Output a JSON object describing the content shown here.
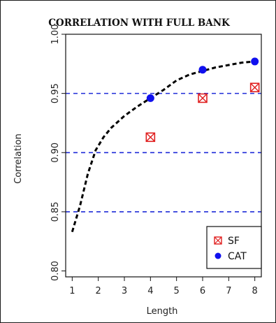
{
  "chart_data": {
    "type": "scatter",
    "title": "CORRELATION WITH FULL BANK",
    "xlabel": "Length",
    "ylabel": "Correlation",
    "xlim": [
      0.75,
      8.25
    ],
    "ylim": [
      0.795,
      1.0
    ],
    "x_ticks": [
      1,
      2,
      3,
      4,
      5,
      6,
      7,
      8
    ],
    "y_ticks": [
      0.8,
      0.85,
      0.9,
      0.95,
      1.0
    ],
    "x_tick_labels": [
      "1",
      "2",
      "3",
      "4",
      "5",
      "6",
      "7",
      "8"
    ],
    "y_tick_labels": [
      "0.80",
      "0.85",
      "0.90",
      "0.95",
      "1.00"
    ],
    "reference_lines": [
      0.85,
      0.9,
      0.95
    ],
    "reference_line_color": "#1f2bd8",
    "grid": false,
    "legend_position": "bottom-right",
    "series": [
      {
        "name": "SF",
        "marker": "crossed-square",
        "color": "#e02020",
        "x": [
          4,
          6,
          8
        ],
        "y": [
          0.913,
          0.946,
          0.955
        ]
      },
      {
        "name": "CAT",
        "marker": "filled-circle",
        "color": "#1010ee",
        "x": [
          4,
          6,
          8
        ],
        "y": [
          0.946,
          0.97,
          0.977
        ]
      }
    ],
    "curve": {
      "style": "dashed",
      "color": "#000000",
      "x": [
        1.0,
        1.3,
        1.6,
        1.9,
        2.2,
        2.5,
        3.0,
        3.5,
        4.0,
        4.5,
        5.0,
        5.5,
        6.0,
        6.5,
        7.0,
        7.5,
        8.0
      ],
      "y": [
        0.833,
        0.855,
        0.882,
        0.902,
        0.913,
        0.921,
        0.931,
        0.939,
        0.946,
        0.953,
        0.961,
        0.966,
        0.969,
        0.972,
        0.974,
        0.976,
        0.977
      ]
    }
  }
}
